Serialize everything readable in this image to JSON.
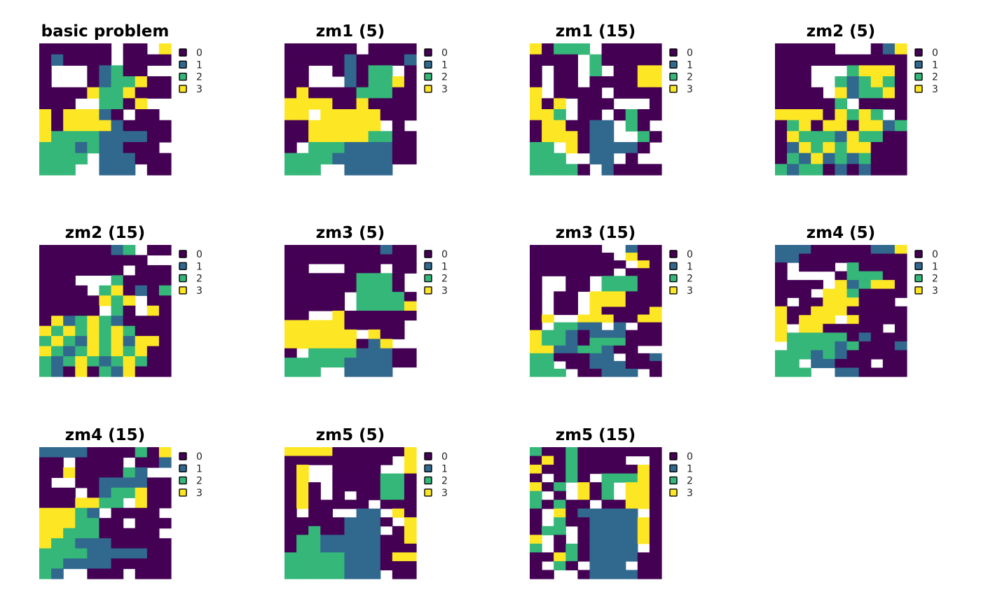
{
  "chart_data": {
    "type": "heatmap",
    "palette": {
      "0": "#440154",
      "1": "#31688E",
      "2": "#35B779",
      "3": "#FDE725",
      "NA": "#FFFFFF"
    },
    "legend": {
      "placement": "right",
      "labels": [
        "0",
        "1",
        "2",
        "3"
      ]
    },
    "panels": [
      {
        "title": "basic problem",
        "grid": [
          "000000N00N3",
          "010000N0000",
          "0NNN01200NN",
          "0NNN0122300",
          "00003223000",
          "000NN2203NN",
          "3033310N00N",
          "30333310000",
          "32222111100",
          "2221211000N",
          "2222N111000",
          "222NN111N00"
        ]
      },
      {
        "title": "zm1 (5)",
        "grid": [
          "000000N0000",
          "00000100001",
          "00NN01022N0",
          "00NNN102230",
          "03000022200",
          "33330030000",
          "33N33333000",
          "00333333N0N",
          "00333332200",
          "0N222111100",
          "22221111100",
          "222NN1111NN"
        ]
      },
      {
        "title": "zm1 (15)",
        "grid": [
          "30222N00000",
          "0000N200000",
          "0N00N2N0033",
          "0N00N000033",
          "3N0000N0000",
          "303N000NNN0",
          "332N00N0200",
          "0330011N20N",
          "0333011NN20",
          "22N3011110N",
          "222NN11N0NN",
          "22220N10000"
        ]
      },
      {
        "title": "zm2 (5)",
        "grid": [
          "00000NNN013",
          "00000000000",
          "000NNN23330",
          "000NN212320",
          "0000N312230",
          "000002N0000",
          "333303232N0",
          "02303303312",
          "03222132200",
          "01323233000",
          "02131212000",
          "21220101000"
        ]
      },
      {
        "title": "zm2 (15)",
        "grid": [
          "00000012N00",
          "000000000NN",
          "0000000N000",
          "000NNN20000",
          "0000N230102",
          "00000323N00",
          "00000N20N30",
          "03123210000",
          "32323232000",
          "23213231330",
          "32123232300",
          "21232123200",
          "21030213000"
        ]
      },
      {
        "title": "zm3 (5)",
        "grid": [
          "00000000100",
          "00000000000",
          "00NNN000N00",
          "0000002220N",
          "0000002220N",
          "00000N22220",
          "00000N22223",
          "00NN3000000",
          "3333300000N",
          "333333N300N",
          "333333013NN",
          "0N222211100",
          "22222111100",
          "222NN1111NN"
        ]
      },
      {
        "title": "zm3 (15)",
        "grid": [
          "000000NN100",
          "0000000N300",
          "00000000N30",
          "0000000N000",
          "0NN00N22200",
          "0NN00N22200",
          "0N00N333000",
          "0N00N333000",
          "0N00N300003",
          "03NN3330033",
          "0N2211N1N00",
          "32210111000",
          "32210222000",
          "331122100NN",
          "2200011N001",
          "22N00111000",
          "222N00111N0"
        ]
      },
      {
        "title": "zm4 (5)",
        "grid": [
          "11100000113",
          "11000000000",
          "0N000N20000",
          "0NNNN022200",
          "0000N312330",
          "000N3320000",
          "0N00333000N",
          "30033300000",
          "30333N30000",
          "3N3300000N0",
          "32222201000",
          "N2222120001",
          "22212100000",
          "22N11000N00",
          "222NN110000"
        ]
      },
      {
        "title": "zm4 (15)",
        "grid": [
          "11110000203",
          "00N0000N001",
          "003000021NN",
          "0NN00111100",
          "000N0122300",
          "0003322N300",
          "33321N0000N",
          "3332200N000",
          "3322200000N",
          "32211100000",
          "22221111100",
          "22111100000",
          "21NN000N000"
        ]
      },
      {
        "title": "zm5 (5)",
        "grid": [
          "33330000003",
          "000000000N3",
          "03NN0000NN3",
          "03NN0000220",
          "030N0000220",
          "030N0N00220",
          "0300000N000",
          "0N00NN11N30",
          "000001110N3",
          "00200111N03",
          "02211111003",
          "02211111000",
          "22222111033",
          "22222111000",
          "22222111N00"
        ]
      },
      {
        "title": "zm5 (15)",
        "grid": [
          "20020000000",
          "03020000NN0",
          "30020000030",
          "0N020N22230",
          "302N302N330",
          "2N0N302N330",
          "20200N00330",
          "0N3011111N0",
          "0N200111130",
          "022N0111130",
          "3N0N0111130",
          "2N0201111N0",
          "00320111100",
          "0N20N111N00",
          "00NN0111100"
        ]
      }
    ]
  }
}
